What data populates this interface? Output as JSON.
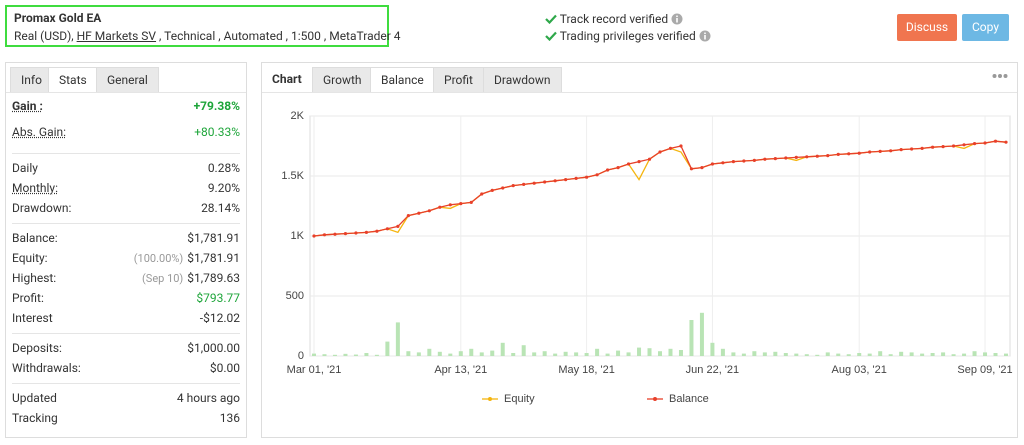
{
  "header": {
    "title": "Promax Gold EA",
    "account_type": "Real (USD),",
    "broker": "HF Markets SV",
    "details": ", Technical , Automated , 1:500 , MetaTrader 4",
    "verifications": [
      "Track record verified",
      "Trading privileges verified"
    ],
    "buttons": [
      {
        "label": "Discuss",
        "color": "#f0754f"
      },
      {
        "label": "Copy",
        "color": "#6db8e4"
      }
    ]
  },
  "info_panel": {
    "tabs": [
      "Info",
      "Stats",
      "General"
    ],
    "active_tab": 1,
    "groups": [
      [
        {
          "label": "Gain :",
          "value": "+79.38%",
          "color": "#1ea53a",
          "bold": true
        },
        {
          "label": "Abs. Gain:",
          "value": "+80.33%",
          "color": "#1ea53a"
        }
      ],
      [
        {
          "label": "Daily",
          "value": "0.28%"
        },
        {
          "label": "Monthly:",
          "value": "9.20%"
        },
        {
          "label": "Drawdown:",
          "value": "28.14%"
        }
      ],
      [
        {
          "label": "Balance:",
          "value": "$1,781.91"
        },
        {
          "label": "Equity:",
          "note": "(100.00%)",
          "value": "$1,781.91"
        },
        {
          "label": "Highest:",
          "note": "(Sep 10)",
          "value": "$1,789.63"
        },
        {
          "label": "Profit:",
          "value": "$793.77",
          "color": "#1ea53a"
        },
        {
          "label": "Interest",
          "value": "-$12.02"
        }
      ],
      [
        {
          "label": "Deposits:",
          "value": "$1,000.00"
        },
        {
          "label": "Withdrawals:",
          "value": "$0.00"
        }
      ],
      [
        {
          "label": "Updated",
          "value": "4 hours ago"
        },
        {
          "label": "Tracking",
          "value": "136"
        }
      ]
    ]
  },
  "chart_panel": {
    "title": "Chart",
    "tabs": [
      "Growth",
      "Balance",
      "Profit",
      "Drawdown"
    ],
    "active_tab": 1
  },
  "chart_data": {
    "type": "line",
    "categories": [
      "Mar 01, '21",
      null,
      null,
      null,
      null,
      null,
      null,
      null,
      null,
      null,
      null,
      null,
      null,
      null,
      "Apr 13, '21",
      null,
      null,
      null,
      null,
      null,
      null,
      null,
      null,
      null,
      null,
      null,
      "May 18, '21",
      null,
      null,
      null,
      null,
      null,
      null,
      null,
      null,
      null,
      null,
      null,
      "Jun 22, '21",
      null,
      null,
      null,
      null,
      null,
      null,
      null,
      null,
      null,
      null,
      null,
      null,
      null,
      "Aug 03, '21",
      null,
      null,
      null,
      null,
      null,
      null,
      null,
      null,
      null,
      null,
      null,
      "Sep 09, '21",
      null,
      null
    ],
    "series": [
      {
        "name": "Equity",
        "color": "#f5b50f",
        "values": [
          1000,
          1010,
          1015,
          1020,
          1025,
          1030,
          1040,
          1060,
          1030,
          1170,
          1190,
          1210,
          1240,
          1230,
          1270,
          1280,
          1350,
          1380,
          1400,
          1420,
          1430,
          1440,
          1450,
          1460,
          1470,
          1480,
          1490,
          1510,
          1550,
          1570,
          1600,
          1470,
          1640,
          1700,
          1730,
          1700,
          1560,
          1570,
          1600,
          1610,
          1620,
          1625,
          1630,
          1640,
          1645,
          1650,
          1630,
          1660,
          1665,
          1670,
          1680,
          1685,
          1690,
          1700,
          1705,
          1710,
          1720,
          1725,
          1730,
          1740,
          1745,
          1750,
          1730,
          1770,
          1775,
          1790,
          1781.91
        ]
      },
      {
        "name": "Balance",
        "color": "#e8402a",
        "values": [
          1000,
          1010,
          1015,
          1020,
          1025,
          1030,
          1040,
          1060,
          1080,
          1170,
          1190,
          1210,
          1240,
          1260,
          1270,
          1280,
          1350,
          1380,
          1400,
          1420,
          1430,
          1440,
          1450,
          1460,
          1470,
          1480,
          1490,
          1510,
          1550,
          1570,
          1600,
          1620,
          1640,
          1700,
          1730,
          1750,
          1560,
          1570,
          1600,
          1610,
          1620,
          1625,
          1630,
          1640,
          1645,
          1650,
          1655,
          1660,
          1665,
          1670,
          1680,
          1685,
          1690,
          1700,
          1705,
          1710,
          1720,
          1725,
          1730,
          1740,
          1745,
          1750,
          1760,
          1770,
          1775,
          1790,
          1781.91
        ]
      }
    ],
    "bars": {
      "color": "#b9e4b5",
      "values": [
        20,
        15,
        10,
        18,
        12,
        25,
        10,
        120,
        280,
        40,
        30,
        60,
        35,
        20,
        40,
        60,
        30,
        45,
        110,
        25,
        90,
        30,
        40,
        20,
        35,
        30,
        25,
        60,
        20,
        45,
        30,
        70,
        65,
        40,
        60,
        50,
        300,
        360,
        110,
        60,
        30,
        20,
        40,
        30,
        35,
        25,
        20,
        15,
        10,
        30,
        20,
        15,
        25,
        20,
        40,
        15,
        35,
        30,
        20,
        25,
        30,
        15,
        20,
        40,
        30,
        25,
        20
      ]
    },
    "ylim": [
      0,
      2000
    ],
    "yticks": [
      0,
      500,
      {
        "value": 1000,
        "label": "1K"
      },
      {
        "value": 1500,
        "label": "1.5K"
      },
      {
        "value": 2000,
        "label": "2K"
      }
    ],
    "grid": true,
    "legend": "bottom"
  }
}
